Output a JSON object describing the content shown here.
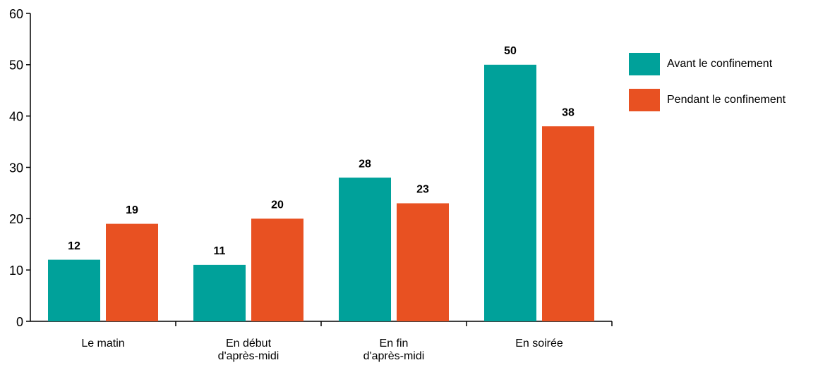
{
  "chart_data": {
    "type": "bar",
    "categories": [
      "Le matin",
      "En début\nd'après-midi",
      "En fin\nd'après-midi",
      "En soirée"
    ],
    "series": [
      {
        "name": "Avant le confinement",
        "color": "#00a19a",
        "values": [
          12,
          11,
          28,
          50
        ]
      },
      {
        "name": "Pendant le confinement",
        "color": "#e85122",
        "values": [
          19,
          20,
          23,
          38
        ]
      }
    ],
    "ylim": [
      0,
      60
    ],
    "yticks": [
      0,
      10,
      20,
      30,
      40,
      50,
      60
    ],
    "legend": "right"
  }
}
